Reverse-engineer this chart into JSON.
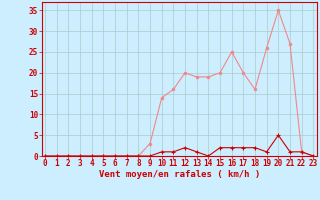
{
  "x": [
    0,
    1,
    2,
    3,
    4,
    5,
    6,
    7,
    8,
    9,
    10,
    11,
    12,
    13,
    14,
    15,
    16,
    17,
    18,
    19,
    20,
    21,
    22,
    23
  ],
  "rafales": [
    0,
    0,
    0,
    0,
    0,
    0,
    0,
    0,
    0,
    3,
    14,
    16,
    20,
    19,
    19,
    20,
    25,
    20,
    16,
    26,
    35,
    27,
    1,
    0
  ],
  "vent_moyen": [
    0,
    0,
    0,
    0,
    0,
    0,
    0,
    0,
    0,
    0,
    1,
    1,
    2,
    1,
    0,
    2,
    2,
    2,
    2,
    1,
    5,
    1,
    1,
    0
  ],
  "bg_color": "#cceeff",
  "grid_color": "#aacccc",
  "line_color_rafales": "#f08888",
  "line_color_vent": "#cc0000",
  "xlabel": "Vent moyen/en rafales ( km/h )",
  "ylabel_ticks": [
    0,
    5,
    10,
    15,
    20,
    25,
    30,
    35
  ],
  "xlim": [
    -0.3,
    23.3
  ],
  "ylim": [
    0,
    37
  ],
  "tick_fontsize": 5.5,
  "label_fontsize": 6.5
}
